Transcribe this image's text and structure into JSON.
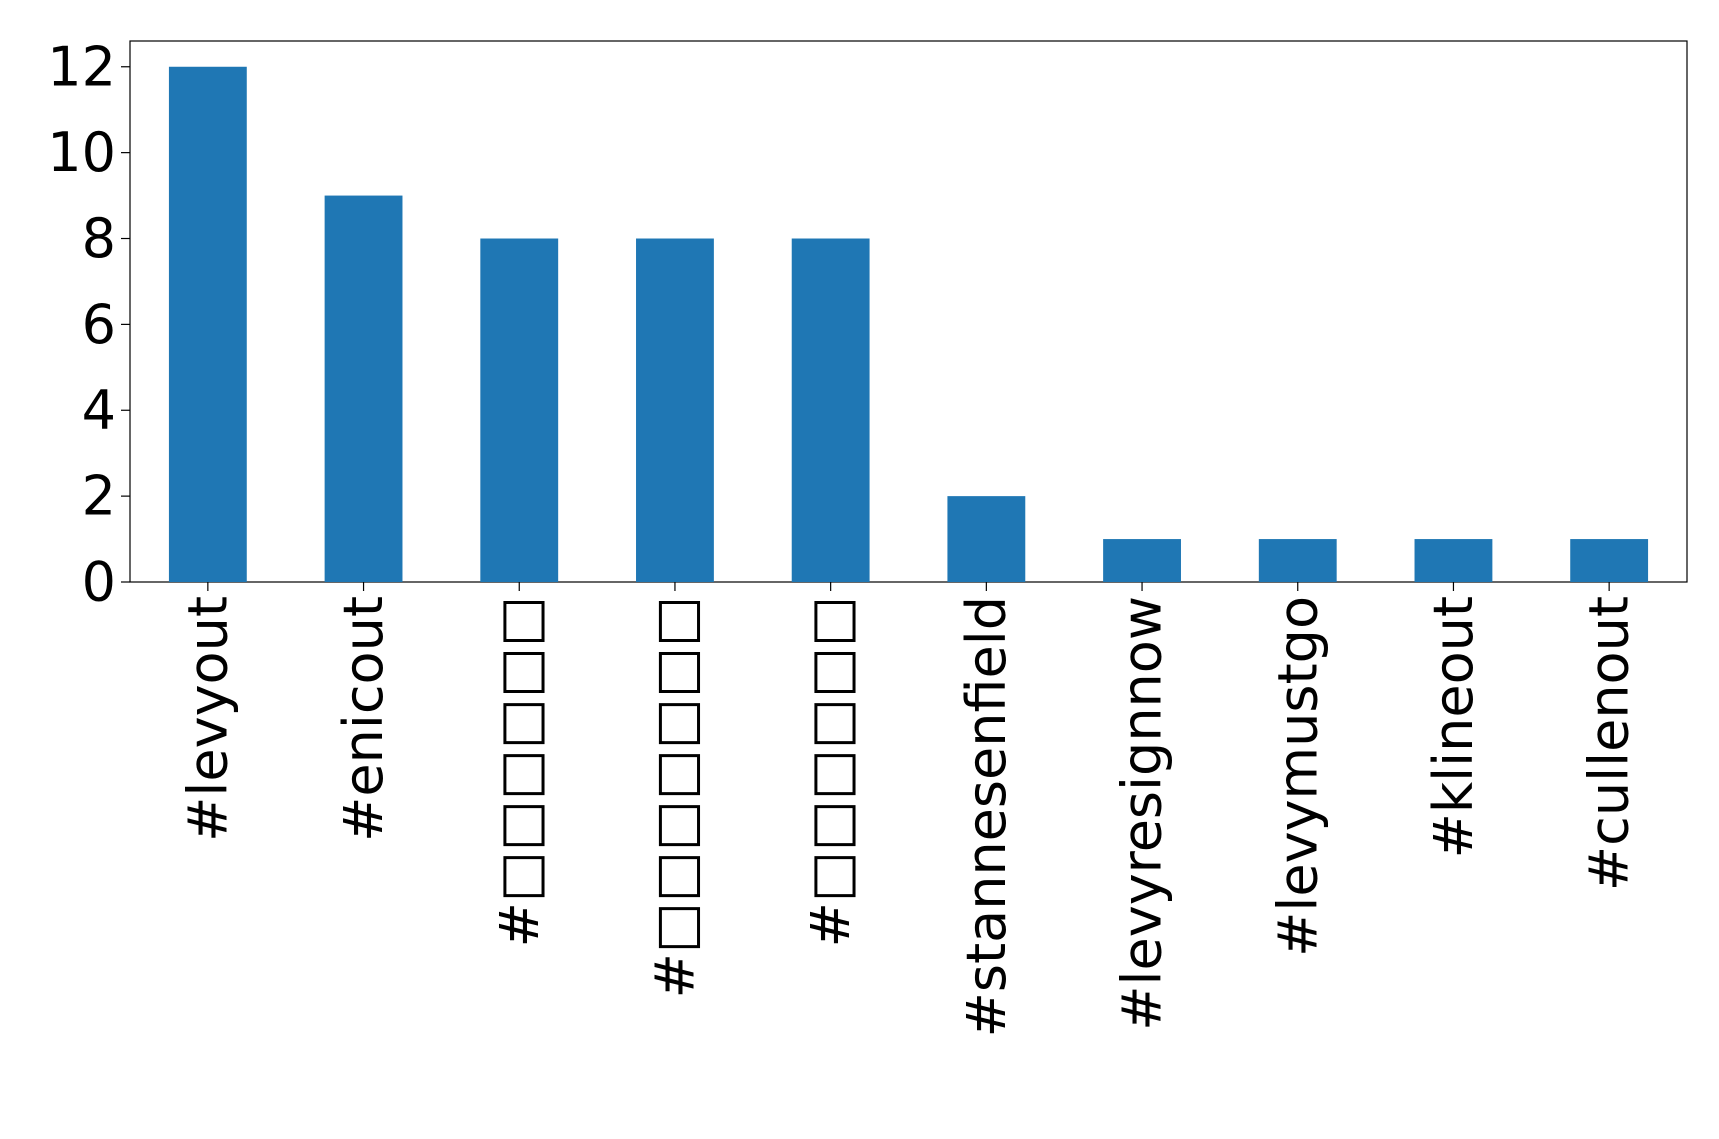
{
  "chart_data": {
    "type": "bar",
    "categories": [
      "#levyout",
      "#enicout",
      "#□□□□□□",
      "#□□□□□□□",
      "#□□□□□□",
      "#stannesenfield",
      "#levyresignnow",
      "#levymustgo",
      "#klineout",
      "#cullenout"
    ],
    "values": [
      12,
      9,
      8,
      8,
      8,
      2,
      1,
      1,
      1,
      1
    ],
    "color": "#1f77b4",
    "ylim": [
      0,
      12.6
    ],
    "yticks": [
      0,
      2,
      4,
      6,
      8,
      10,
      12
    ],
    "grid": false
  }
}
